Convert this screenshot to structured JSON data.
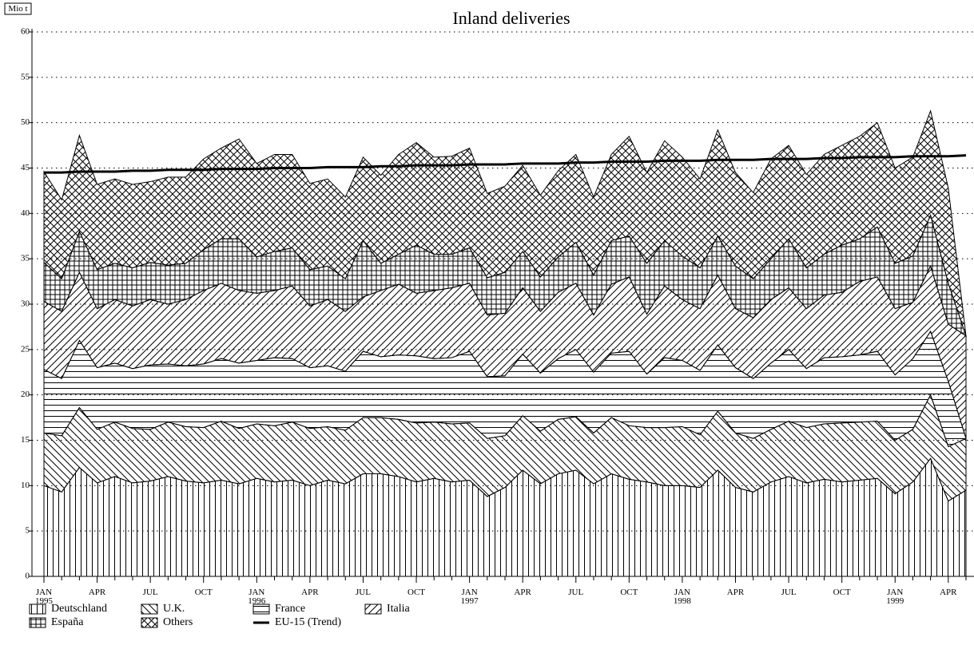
{
  "chart_data": {
    "type": "stacked-area",
    "title": "Inland deliveries",
    "ylabel": "Mio t",
    "categories": [
      "JAN\n1995",
      null,
      null,
      "APR",
      null,
      null,
      "JUL",
      null,
      null,
      "OCT",
      null,
      null,
      "JAN\n1996",
      null,
      null,
      "APR",
      null,
      null,
      "JUL",
      null,
      null,
      "OCT",
      null,
      null,
      "JAN\n1997",
      null,
      null,
      "APR",
      null,
      null,
      "JUL",
      null,
      null,
      "OCT",
      null,
      null,
      "JAN\n1998",
      null,
      null,
      "APR",
      null,
      null,
      "JUL",
      null,
      null,
      "OCT",
      null,
      null,
      "JAN\n1999",
      null,
      null,
      "APR",
      null
    ],
    "ylim": [
      0,
      60
    ],
    "yticks": [
      0,
      5,
      10,
      15,
      20,
      25,
      30,
      35,
      40,
      45,
      50,
      55,
      60
    ],
    "grid": true,
    "series": [
      {
        "name": "Deutschland",
        "color": "#000000",
        "pattern": "vertical",
        "values": [
          10,
          9.3,
          12,
          10.3,
          11,
          10.3,
          10.5,
          11,
          10.5,
          10.3,
          10.6,
          10.2,
          10.8,
          10.4,
          10.6,
          10,
          10.6,
          10.2,
          11.3,
          11.3,
          11,
          10.4,
          10.8,
          10.4,
          10.6,
          8.8,
          9.8,
          11.7,
          10.2,
          11.3,
          11.7,
          10.2,
          11.3,
          10.7,
          10.4,
          10,
          10,
          9.8,
          11.7,
          9.8,
          9.3,
          10.4,
          11,
          10.3,
          10.7,
          10.4,
          10.6,
          10.8,
          9.1,
          10.4,
          13,
          8.3,
          9.5
        ]
      },
      {
        "name": "U.K.",
        "color": "#000000",
        "pattern": "backslash",
        "values": [
          5.8,
          6.2,
          6.6,
          5.9,
          6,
          6,
          5.7,
          6,
          6,
          6.1,
          6.5,
          6.1,
          6,
          6.2,
          6.4,
          6.3,
          5.9,
          5.9,
          6.2,
          6.2,
          6.3,
          6.5,
          6.2,
          6.4,
          6.3,
          6.4,
          5.7,
          6,
          5.8,
          6,
          5.9,
          5.6,
          6.2,
          5.9,
          6,
          6.4,
          6.5,
          5.8,
          6.5,
          6,
          5.9,
          5.8,
          6.1,
          6.1,
          6.1,
          6.5,
          6.4,
          6.3,
          5.9,
          5.8,
          7,
          6,
          5.7
        ]
      },
      {
        "name": "France",
        "color": "#000000",
        "pattern": "horizontal",
        "values": [
          7,
          6.3,
          7.4,
          6.8,
          6.5,
          6.6,
          7.1,
          6.4,
          6.7,
          7,
          6.9,
          7.2,
          7,
          7.5,
          7,
          6.7,
          6.7,
          6.5,
          7.3,
          6.7,
          7.1,
          7.4,
          7,
          7.3,
          7.9,
          6.8,
          6.6,
          6.8,
          6.4,
          6.7,
          7.4,
          6.7,
          7.1,
          8.2,
          5.9,
          7.7,
          7.3,
          7.1,
          7.3,
          7.2,
          6.6,
          7.3,
          7.9,
          6.5,
          7.3,
          7.3,
          7.4,
          7.7,
          7.2,
          7.8,
          7,
          7.2,
          0
        ]
      },
      {
        "name": "Italia",
        "color": "#000000",
        "pattern": "slash",
        "values": [
          7.5,
          7.4,
          7.5,
          6.5,
          7,
          6.9,
          7.2,
          6.6,
          7.3,
          8.1,
          8.3,
          8,
          7.4,
          7.4,
          8,
          6.8,
          7.3,
          6.6,
          6,
          7.3,
          7.8,
          6.9,
          7.5,
          7.7,
          7.5,
          6.8,
          6.9,
          7.3,
          6.8,
          7.3,
          7.3,
          6.3,
          7.6,
          8.2,
          6.6,
          7.9,
          6.7,
          6.8,
          7.7,
          6.5,
          6.7,
          7,
          6.8,
          6.6,
          6.9,
          7.1,
          8.1,
          8.2,
          7.3,
          6.2,
          7.2,
          6.3,
          11.3
        ]
      },
      {
        "name": "España",
        "color": "#000000",
        "pattern": "grid",
        "values": [
          4.3,
          3.6,
          4.5,
          4.3,
          4,
          4.2,
          4.1,
          4.3,
          4,
          4.5,
          4.9,
          5.7,
          4,
          4.3,
          4.2,
          4,
          3.7,
          3.6,
          6.2,
          3,
          3.3,
          5.3,
          4,
          3.7,
          3.9,
          4.1,
          4.5,
          4,
          3.8,
          3.9,
          4.5,
          4.4,
          4.8,
          4.5,
          5.6,
          5,
          4.8,
          4.5,
          4.3,
          4.7,
          4.3,
          4.5,
          5.4,
          4.5,
          4.5,
          5.2,
          4.7,
          5.5,
          5,
          5.1,
          5.6,
          4.5,
          0
        ]
      },
      {
        "name": "Others",
        "color": "#000000",
        "pattern": "crosshatch",
        "values": [
          10,
          8.7,
          10.6,
          9.4,
          9.3,
          9.2,
          8.9,
          9.7,
          9.5,
          10,
          10,
          11,
          10.3,
          10.7,
          10.3,
          9.5,
          9.6,
          9,
          9.2,
          9.7,
          11,
          11.3,
          10.7,
          10.8,
          11,
          9.3,
          9.5,
          9.5,
          9,
          9.5,
          9.7,
          8.6,
          9.5,
          11,
          10,
          11,
          10.9,
          9.8,
          11.7,
          10.3,
          9.5,
          11,
          10.3,
          10.3,
          11,
          11,
          11.3,
          11.5,
          10.5,
          10.9,
          11.5,
          10.5,
          0
        ]
      },
      {
        "name": "EU-15 (Trend)",
        "color": "#000000",
        "type": "line",
        "values": [
          44.5,
          44.5,
          44.6,
          44.6,
          44.6,
          44.7,
          44.7,
          44.8,
          44.8,
          44.8,
          44.9,
          44.9,
          44.9,
          45.0,
          45.0,
          45.0,
          45.1,
          45.1,
          45.1,
          45.2,
          45.2,
          45.3,
          45.3,
          45.3,
          45.4,
          45.4,
          45.4,
          45.5,
          45.5,
          45.5,
          45.6,
          45.6,
          45.7,
          45.7,
          45.7,
          45.8,
          45.8,
          45.8,
          45.9,
          45.9,
          45.9,
          46.0,
          46.0,
          46.0,
          46.1,
          46.1,
          46.2,
          46.2,
          46.2,
          46.3,
          46.3,
          46.3,
          46.4
        ]
      }
    ]
  }
}
